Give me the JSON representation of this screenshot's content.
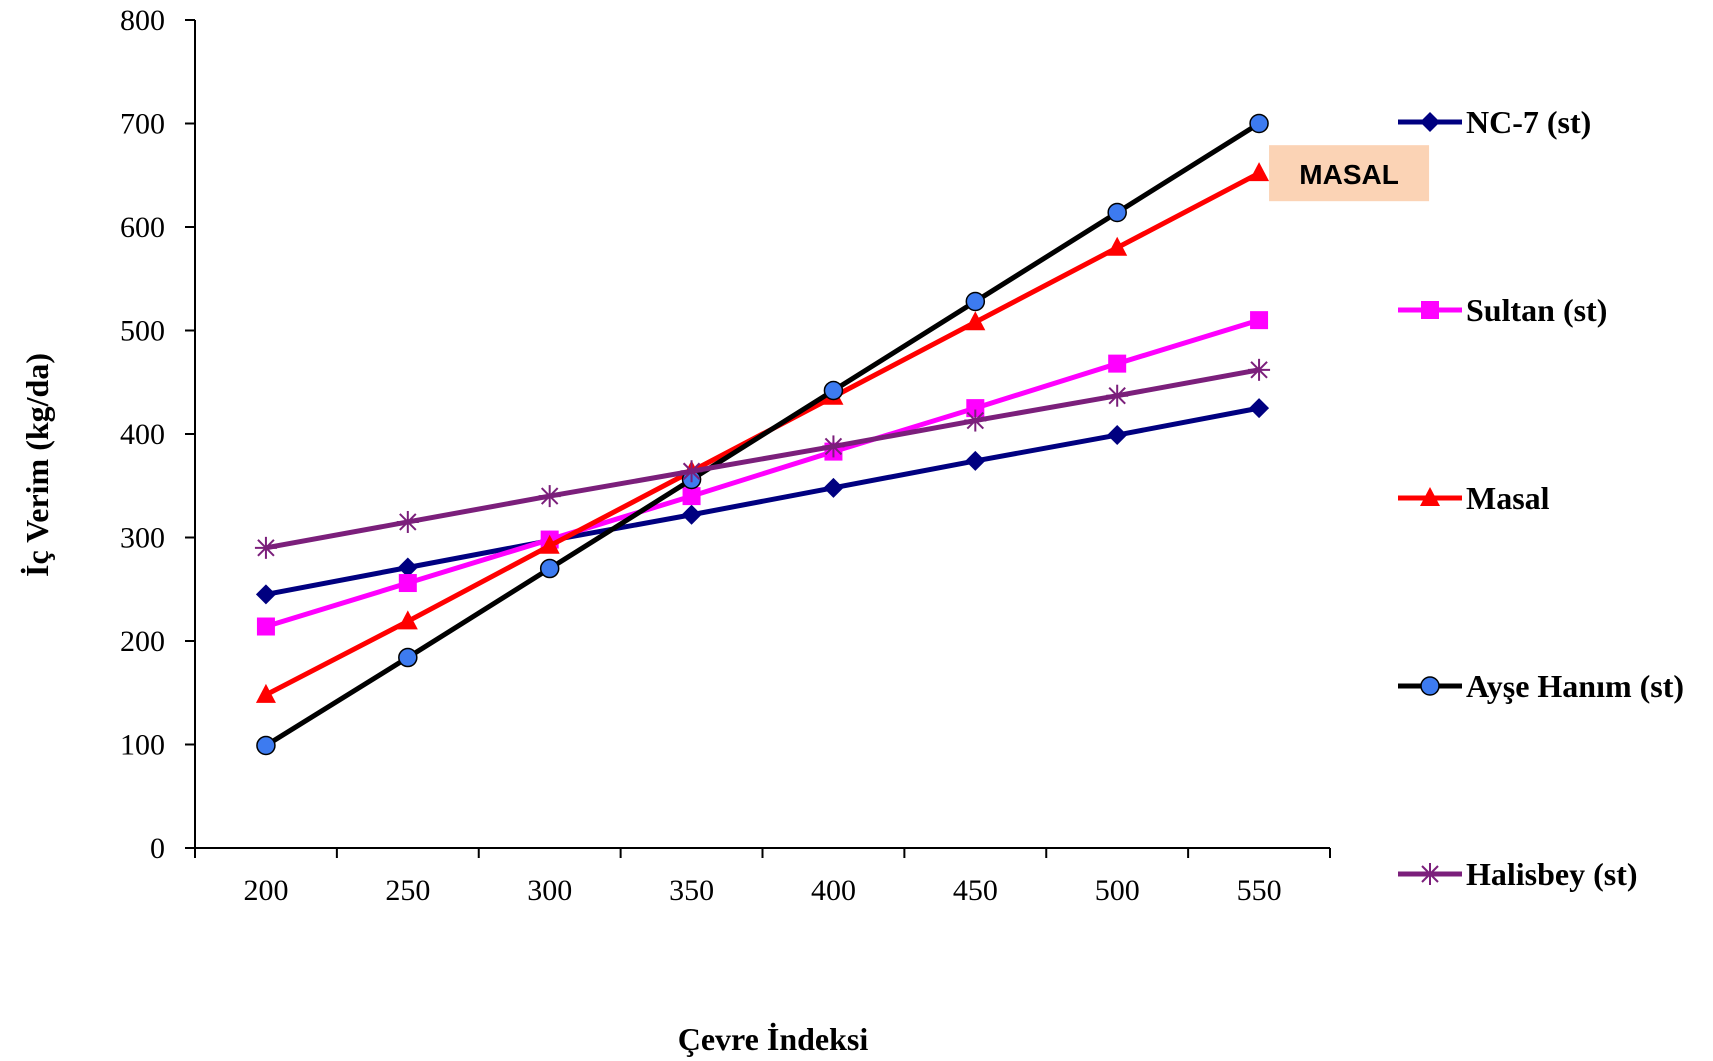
{
  "chart_data": {
    "type": "line",
    "xlabel": "Çevre İndeksi",
    "ylabel": "İç Verim (kg/da)",
    "x": [
      200,
      250,
      300,
      350,
      400,
      450,
      500,
      550
    ],
    "x_tick_labels": [
      "200",
      "250",
      "300",
      "350",
      "400",
      "450",
      "500",
      "550"
    ],
    "y_tick_labels": [
      "0",
      "100",
      "200",
      "300",
      "400",
      "500",
      "600",
      "700",
      "800"
    ],
    "xlim": [
      175,
      575
    ],
    "ylim": [
      0,
      800
    ],
    "grid": false,
    "legend_position": "right",
    "series": [
      {
        "name": "NC-7 (st)",
        "color": "#000080",
        "marker": "diamond",
        "values": [
          245,
          271,
          297,
          322,
          348,
          374,
          399,
          425
        ]
      },
      {
        "name": "Sultan (st)",
        "color": "#ff00ff",
        "marker": "square",
        "values": [
          214,
          256,
          298,
          340,
          383,
          425,
          468,
          510
        ]
      },
      {
        "name": "Masal",
        "color": "#ff0000",
        "marker": "triangle",
        "values": [
          148,
          219,
          292,
          364,
          436,
          508,
          580,
          652
        ]
      },
      {
        "name": "Ayşe Hanım (st)",
        "color": "#000000",
        "marker": "circle",
        "marker_fill": "#3d7bf0",
        "values": [
          99,
          184,
          270,
          356,
          442,
          528,
          614,
          700
        ]
      },
      {
        "name": "Halisbey (st)",
        "color": "#7b1f7b",
        "marker": "star",
        "values": [
          290,
          315,
          340,
          364,
          388,
          413,
          437,
          462
        ]
      }
    ],
    "annotations": [
      {
        "text": "MASAL",
        "background": "#fbd3b5",
        "series": "Masal"
      }
    ]
  }
}
